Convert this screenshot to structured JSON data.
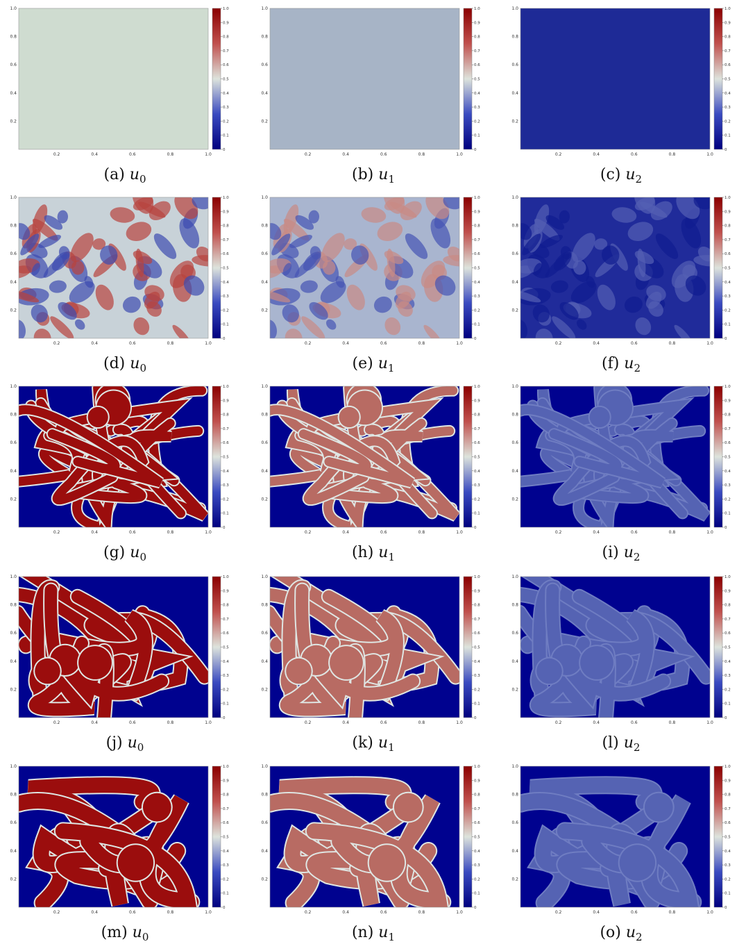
{
  "figure": {
    "axis_ticks_x": [
      "0.2",
      "0.4",
      "0.6",
      "0.8",
      "1.0"
    ],
    "axis_ticks_y": [
      "1.0",
      "0.8",
      "0.6",
      "0.4",
      "0.2"
    ],
    "colorbar_ticks": [
      "1.0",
      "0.9",
      "0.8",
      "0.7",
      "0.6",
      "0.5",
      "0.4",
      "0.3",
      "0.2",
      "0.1",
      "0"
    ],
    "colorbar_colors": {
      "low": "#00008b",
      "mid": "#dde3dc",
      "high": "#8b0000"
    },
    "panels": [
      {
        "label": "(a)",
        "var": "u",
        "sub": "0",
        "style": "uniform",
        "fill": "#cfdcd0"
      },
      {
        "label": "(b)",
        "var": "u",
        "sub": "1",
        "style": "uniform",
        "fill": "#a7b4c6"
      },
      {
        "label": "(c)",
        "var": "u",
        "sub": "2",
        "style": "uniform",
        "fill": "#1e2a96"
      },
      {
        "label": "(d)",
        "var": "u",
        "sub": "0",
        "style": "noisy",
        "fill": "#c8d2d8",
        "hi": "#b8433f",
        "lo": "#3d4cb0"
      },
      {
        "label": "(e)",
        "var": "u",
        "sub": "1",
        "style": "noisy",
        "fill": "#a9b5cf",
        "hi": "#c98a84",
        "lo": "#4654b3"
      },
      {
        "label": "(f)",
        "var": "u",
        "sub": "2",
        "style": "noisy",
        "fill": "#202b9a",
        "hi": "#5460b4",
        "lo": "#101c90"
      },
      {
        "label": "(g)",
        "var": "u",
        "sub": "0",
        "style": "pattern",
        "fill": "#00028f",
        "hi": "#9b0d0d",
        "edge": "#dfe6e3"
      },
      {
        "label": "(h)",
        "var": "u",
        "sub": "1",
        "style": "pattern",
        "fill": "#00028f",
        "hi": "#b86b63",
        "edge": "#dfe6e3"
      },
      {
        "label": "(i)",
        "var": "u",
        "sub": "2",
        "style": "pattern",
        "fill": "#00028f",
        "hi": "#5563b3",
        "edge": "#6f7dc2"
      },
      {
        "label": "(j)",
        "var": "u",
        "sub": "0",
        "style": "pattern",
        "fill": "#00028f",
        "hi": "#9b0d0d",
        "edge": "#dfe6e3"
      },
      {
        "label": "(k)",
        "var": "u",
        "sub": "1",
        "style": "pattern",
        "fill": "#00028f",
        "hi": "#b86b63",
        "edge": "#dfe6e3"
      },
      {
        "label": "(l)",
        "var": "u",
        "sub": "2",
        "style": "pattern",
        "fill": "#00028f",
        "hi": "#5563b3",
        "edge": "#6f7dc2"
      },
      {
        "label": "(m)",
        "var": "u",
        "sub": "0",
        "style": "pattern",
        "fill": "#00028f",
        "hi": "#9b0d0d",
        "edge": "#dfe6e3"
      },
      {
        "label": "(n)",
        "var": "u",
        "sub": "1",
        "style": "pattern",
        "fill": "#00028f",
        "hi": "#b86b63",
        "edge": "#dfe6e3"
      },
      {
        "label": "(o)",
        "var": "u",
        "sub": "2",
        "style": "pattern",
        "fill": "#00028f",
        "hi": "#5563b3",
        "edge": "#6f7dc2"
      }
    ]
  }
}
